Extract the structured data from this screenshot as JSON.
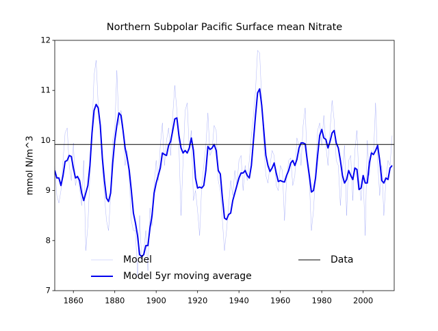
{
  "chart_data": {
    "type": "line",
    "title": "Northern Subpolar Pacific Surface mean Nitrate",
    "ylabel": "mmol N/m^3",
    "x": [
      1851,
      1852,
      1853,
      1854,
      1855,
      1856,
      1857,
      1858,
      1859,
      1860,
      1861,
      1862,
      1863,
      1864,
      1865,
      1866,
      1867,
      1868,
      1869,
      1870,
      1871,
      1872,
      1873,
      1874,
      1875,
      1876,
      1877,
      1878,
      1879,
      1880,
      1881,
      1882,
      1883,
      1884,
      1885,
      1886,
      1887,
      1888,
      1889,
      1890,
      1891,
      1892,
      1893,
      1894,
      1895,
      1896,
      1897,
      1898,
      1899,
      1900,
      1901,
      1902,
      1903,
      1904,
      1905,
      1906,
      1907,
      1908,
      1909,
      1910,
      1911,
      1912,
      1913,
      1914,
      1915,
      1916,
      1917,
      1918,
      1919,
      1920,
      1921,
      1922,
      1923,
      1924,
      1925,
      1926,
      1927,
      1928,
      1929,
      1930,
      1931,
      1932,
      1933,
      1934,
      1935,
      1936,
      1937,
      1938,
      1939,
      1940,
      1941,
      1942,
      1943,
      1944,
      1945,
      1946,
      1947,
      1948,
      1949,
      1950,
      1951,
      1952,
      1953,
      1954,
      1955,
      1956,
      1957,
      1958,
      1959,
      1960,
      1961,
      1962,
      1963,
      1964,
      1965,
      1966,
      1967,
      1968,
      1969,
      1970,
      1971,
      1972,
      1973,
      1974,
      1975,
      1976,
      1977,
      1978,
      1979,
      1980,
      1981,
      1982,
      1983,
      1984,
      1985,
      1986,
      1987,
      1988,
      1989,
      1990,
      1991,
      1992,
      1993,
      1994,
      1995,
      1996,
      1997,
      1998,
      1999,
      2000,
      2001,
      2002,
      2003,
      2004,
      2005,
      2006,
      2007,
      2008,
      2009,
      2010,
      2011,
      2012,
      2013,
      2014
    ],
    "series": [
      {
        "name": "Model",
        "color": "#4f5cf0",
        "linewidth": 0.4,
        "opacity": 0.6,
        "values": [
          9.5,
          8.9,
          8.75,
          9.0,
          9.6,
          10.15,
          10.25,
          9.5,
          9.2,
          9.95,
          9.1,
          9.3,
          9.05,
          8.7,
          9.6,
          7.8,
          8.3,
          9.3,
          10.2,
          11.3,
          11.6,
          10.7,
          10.2,
          9.5,
          8.9,
          8.4,
          8.2,
          8.9,
          10.0,
          10.2,
          11.4,
          10.3,
          10.6,
          10.3,
          9.5,
          9.8,
          9.2,
          8.4,
          8.2,
          8.2,
          7.3,
          8.5,
          7.6,
          7.8,
          8.2,
          7.4,
          8.65,
          8.3,
          9.1,
          9.6,
          9.2,
          9.9,
          10.35,
          9.5,
          10.0,
          10.25,
          9.7,
          10.5,
          11.1,
          10.6,
          9.9,
          8.5,
          9.6,
          10.6,
          10.75,
          9.8,
          10.2,
          8.8,
          9.0,
          8.6,
          8.1,
          9.1,
          9.5,
          9.9,
          10.55,
          9.7,
          9.8,
          10.3,
          10.2,
          9.2,
          9.0,
          8.4,
          7.8,
          8.2,
          8.7,
          9.2,
          8.9,
          9.4,
          9.1,
          9.6,
          9.7,
          9.0,
          9.5,
          9.2,
          9.6,
          10.1,
          10.5,
          11.0,
          11.8,
          11.75,
          10.8,
          9.9,
          9.3,
          9.15,
          9.5,
          9.8,
          9.7,
          9.1,
          9.0,
          9.5,
          9.4,
          8.4,
          9.2,
          9.6,
          9.65,
          9.1,
          9.3,
          10.05,
          9.9,
          9.5,
          10.3,
          10.65,
          9.5,
          9.2,
          8.2,
          8.6,
          9.3,
          10.2,
          10.35,
          9.9,
          10.5,
          9.9,
          9.5,
          10.2,
          10.8,
          10.4,
          9.6,
          9.5,
          8.7,
          9.4,
          9.9,
          8.5,
          9.6,
          9.7,
          8.8,
          9.8,
          10.2,
          9.2,
          8.8,
          9.3,
          8.1,
          10.0,
          9.3,
          9.8,
          9.7,
          10.75,
          9.6,
          8.9,
          9.5,
          8.5,
          9.2,
          9.6,
          9.5,
          10.1
        ]
      },
      {
        "name": "Model 5yr moving average",
        "color": "#0000ee",
        "linewidth": 2,
        "opacity": 1,
        "values": [
          9.4,
          9.25,
          9.25,
          9.1,
          9.3,
          9.58,
          9.6,
          9.7,
          9.68,
          9.45,
          9.25,
          9.28,
          9.2,
          8.95,
          8.8,
          8.95,
          9.1,
          9.5,
          10.15,
          10.6,
          10.72,
          10.65,
          10.3,
          9.65,
          9.2,
          8.85,
          8.78,
          8.95,
          9.55,
          10.0,
          10.3,
          10.55,
          10.5,
          10.2,
          9.85,
          9.65,
          9.4,
          9.0,
          8.55,
          8.35,
          8.1,
          7.72,
          7.68,
          7.72,
          7.9,
          7.9,
          8.25,
          8.5,
          8.95,
          9.15,
          9.3,
          9.45,
          9.75,
          9.72,
          9.7,
          9.9,
          9.98,
          10.2,
          10.43,
          10.45,
          10.1,
          9.85,
          9.75,
          9.8,
          9.75,
          9.85,
          10.05,
          9.8,
          9.25,
          9.05,
          9.07,
          9.05,
          9.1,
          9.4,
          9.88,
          9.82,
          9.85,
          9.92,
          9.8,
          9.4,
          9.33,
          8.85,
          8.45,
          8.42,
          8.52,
          8.55,
          8.8,
          8.95,
          9.1,
          9.25,
          9.35,
          9.35,
          9.4,
          9.3,
          9.25,
          9.5,
          10.0,
          10.5,
          10.95,
          11.03,
          10.7,
          10.2,
          9.7,
          9.5,
          9.38,
          9.45,
          9.55,
          9.35,
          9.18,
          9.2,
          9.18,
          9.17,
          9.3,
          9.4,
          9.55,
          9.6,
          9.5,
          9.62,
          9.85,
          9.95,
          9.95,
          9.93,
          9.6,
          9.3,
          8.97,
          9.0,
          9.25,
          9.7,
          10.1,
          10.22,
          10.05,
          10.02,
          9.85,
          9.98,
          10.15,
          10.2,
          9.95,
          9.85,
          9.6,
          9.3,
          9.15,
          9.22,
          9.4,
          9.3,
          9.22,
          9.45,
          9.42,
          9.02,
          9.05,
          9.3,
          9.15,
          9.15,
          9.55,
          9.75,
          9.72,
          9.8,
          9.9,
          9.6,
          9.2,
          9.15,
          9.25,
          9.22,
          9.45,
          9.5
        ]
      }
    ],
    "hlines": [
      {
        "name": "Data",
        "color": "#000000",
        "value": 9.92
      }
    ],
    "xlim": [
      1851,
      2015
    ],
    "ylim": [
      7,
      12
    ],
    "xticks": [
      1860,
      1880,
      1900,
      1920,
      1940,
      1960,
      1980,
      2000
    ],
    "yticks": [
      7,
      8,
      9,
      10,
      11,
      12
    ],
    "legend": "lower center",
    "grid": false
  }
}
